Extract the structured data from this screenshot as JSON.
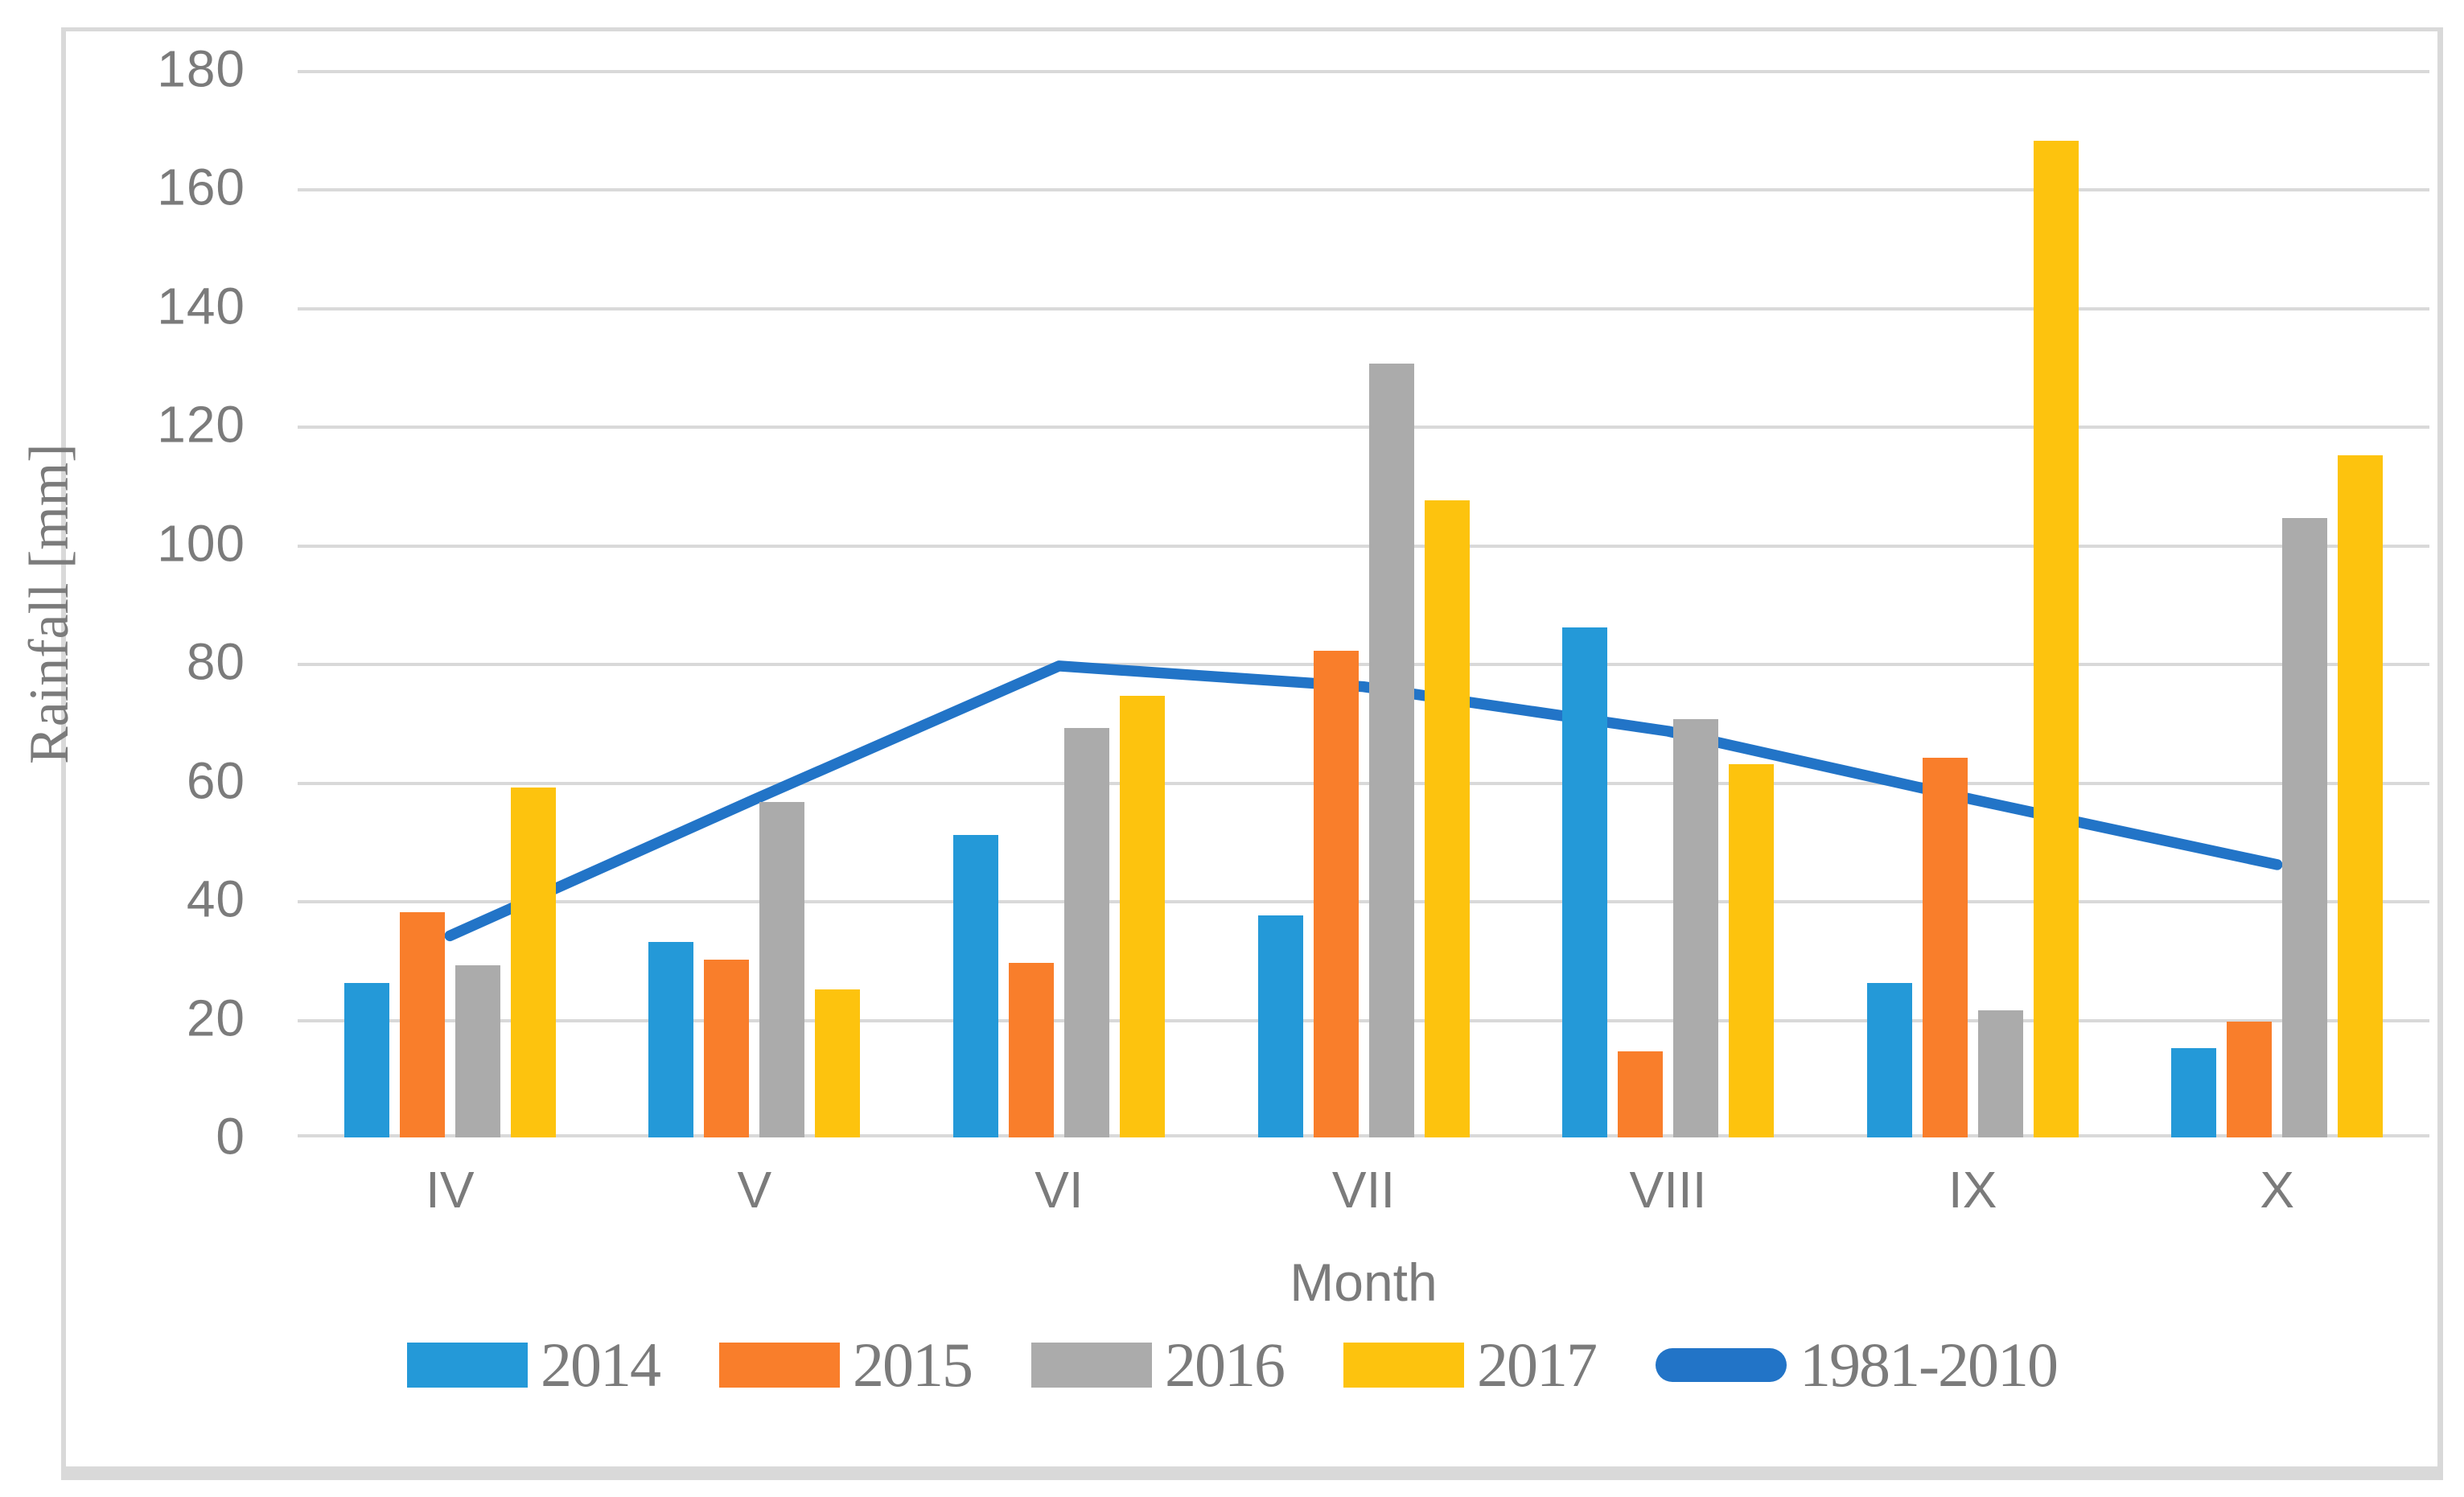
{
  "figure": {
    "y_axis_title": "Rainfall [mm]",
    "x_axis_title": "Month"
  },
  "chart_data": {
    "type": "bar",
    "title": "",
    "xlabel": "Month",
    "ylabel": "Rainfall [mm]",
    "categories": [
      "IV",
      "V",
      "VI",
      "VII",
      "VIII",
      "IX",
      "X"
    ],
    "series": [
      {
        "name": "2014",
        "color": "#2499d8",
        "values": [
          26,
          33,
          51,
          37.5,
          86,
          26,
          15
        ]
      },
      {
        "name": "2015",
        "color": "#f97e2b",
        "values": [
          38,
          30,
          29.5,
          82,
          14.5,
          64,
          19.5
        ]
      },
      {
        "name": "2016",
        "color": "#ababab",
        "values": [
          29,
          56.5,
          69,
          130.5,
          70.5,
          21.5,
          104.5
        ]
      },
      {
        "name": "2017",
        "color": "#fdc30e",
        "values": [
          59,
          25,
          74.5,
          107.5,
          63,
          168,
          115
        ]
      }
    ],
    "line_series": {
      "name": "1981-2010",
      "color": "#2274c7",
      "values": [
        34,
        57,
        79.5,
        76,
        68.5,
        57,
        46
      ]
    },
    "y_axis": {
      "min": 0,
      "max": 180,
      "step": 20,
      "ticks": [
        180,
        160,
        140,
        120,
        100,
        80,
        60,
        40,
        20,
        0
      ]
    },
    "grid": true,
    "legend_position": "bottom"
  },
  "style": {
    "grid_color": "#d9d9d9",
    "text_color": "#7b7b7b",
    "frame_color": "#d9d9d9"
  }
}
